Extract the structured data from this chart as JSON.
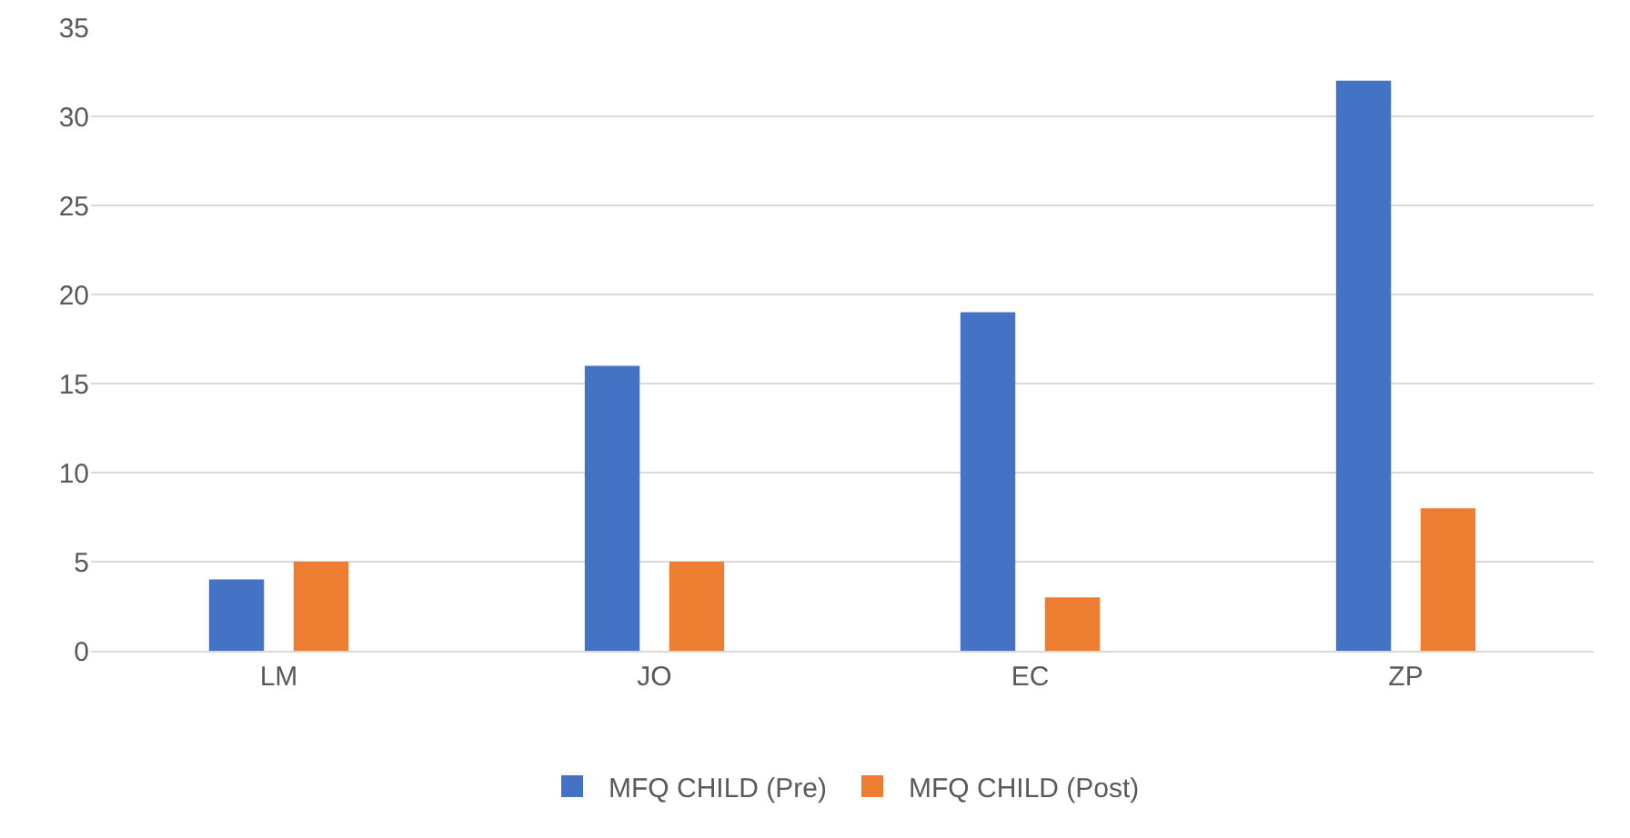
{
  "chart_data": {
    "type": "bar",
    "categories": [
      "LM",
      "JO",
      "EC",
      "ZP"
    ],
    "series": [
      {
        "name": "MFQ CHILD (Pre)",
        "color": "#4472c4",
        "values": [
          4,
          16,
          19,
          32
        ]
      },
      {
        "name": "MFQ CHILD (Post)",
        "color": "#ed7d31",
        "values": [
          5,
          5,
          3,
          8
        ]
      }
    ],
    "ylim": [
      0,
      35
    ],
    "yticks": [
      0,
      5,
      10,
      15,
      20,
      25,
      30,
      35
    ],
    "grid": "y",
    "legend": "bottom"
  }
}
